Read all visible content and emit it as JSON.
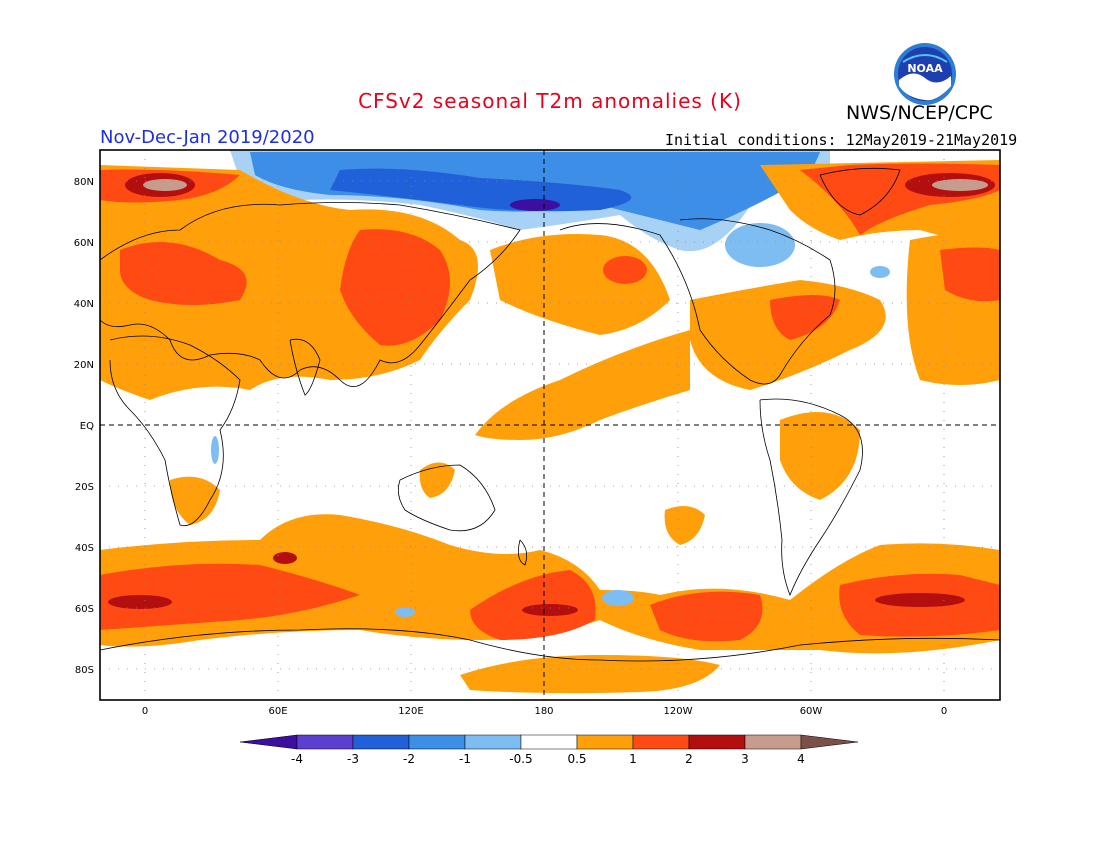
{
  "header": {
    "title": "CFSv2 seasonal T2m anomalies (K)",
    "agency": "NWS/NCEP/CPC",
    "period": "Nov-Dec-Jan 2019/2020",
    "initial_conditions": "Initial conditions: 12May2019-21May2019",
    "logo_text": "NOAA"
  },
  "axes": {
    "lat_labels": [
      "80N",
      "60N",
      "40N",
      "20N",
      "EQ",
      "20S",
      "40S",
      "60S",
      "80S"
    ],
    "lon_labels": [
      "0",
      "60E",
      "120E",
      "180",
      "120W",
      "60W",
      "0"
    ]
  },
  "colorbar": {
    "labels": [
      "-4",
      "-3",
      "-2",
      "-1",
      "-0.5",
      "0.5",
      "1",
      "2",
      "3",
      "4"
    ],
    "colors": [
      "#3c0fa0",
      "#5b3fd0",
      "#2060d8",
      "#3c8ee6",
      "#7dbdf2",
      "#ffffff",
      "#ffa00a",
      "#ff4a14",
      "#b40f0f",
      "#c89c8c",
      "#7a5048"
    ]
  },
  "colors": {
    "title": "#e8001c",
    "period": "#1f2fe0"
  }
}
